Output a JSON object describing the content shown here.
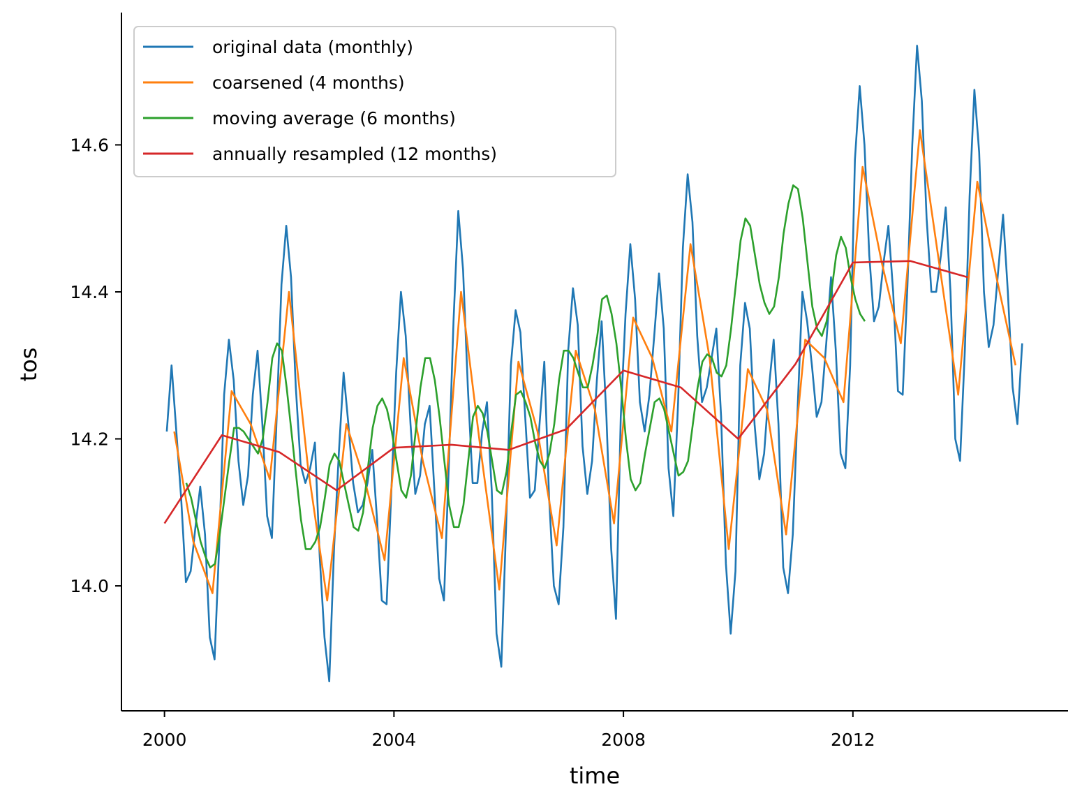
{
  "chart_data": {
    "type": "line",
    "title": "",
    "xlabel": "time",
    "ylabel": "tos",
    "xlim": [
      1999.25,
      2015.75
    ],
    "ylim": [
      13.83,
      14.78
    ],
    "xticks": [
      2000,
      2004,
      2008,
      2012
    ],
    "xtick_labels": [
      "2000",
      "2004",
      "2008",
      "2012"
    ],
    "yticks": [
      14.0,
      14.2,
      14.4,
      14.6
    ],
    "ytick_labels": [
      "14.0",
      "14.2",
      "14.4",
      "14.6"
    ],
    "legend_position": "top-left",
    "series": [
      {
        "name": "original data (monthly)",
        "color": "#1f77b4",
        "x_start": 2000.04,
        "x_step": 0.0833,
        "values": [
          14.21,
          14.3,
          14.21,
          14.12,
          14.005,
          14.02,
          14.08,
          14.135,
          14.07,
          13.93,
          13.9,
          14.06,
          14.26,
          14.335,
          14.28,
          14.17,
          14.11,
          14.15,
          14.26,
          14.32,
          14.22,
          14.095,
          14.065,
          14.23,
          14.41,
          14.49,
          14.42,
          14.27,
          14.165,
          14.14,
          14.16,
          14.195,
          14.04,
          13.93,
          13.87,
          14.05,
          14.18,
          14.29,
          14.22,
          14.14,
          14.1,
          14.11,
          14.14,
          14.185,
          14.09,
          13.98,
          13.975,
          14.13,
          14.29,
          14.4,
          14.34,
          14.22,
          14.125,
          14.15,
          14.22,
          14.245,
          14.13,
          14.01,
          13.98,
          14.16,
          14.36,
          14.51,
          14.43,
          14.27,
          14.14,
          14.14,
          14.21,
          14.25,
          14.13,
          13.935,
          13.89,
          14.08,
          14.3,
          14.375,
          14.345,
          14.23,
          14.12,
          14.13,
          14.22,
          14.305,
          14.12,
          14.0,
          13.975,
          14.08,
          14.32,
          14.405,
          14.355,
          14.19,
          14.125,
          14.17,
          14.28,
          14.36,
          14.23,
          14.05,
          13.955,
          14.23,
          14.37,
          14.465,
          14.39,
          14.25,
          14.21,
          14.26,
          14.34,
          14.425,
          14.35,
          14.16,
          14.095,
          14.25,
          14.46,
          14.56,
          14.495,
          14.34,
          14.25,
          14.27,
          14.31,
          14.35,
          14.23,
          14.03,
          13.935,
          14.02,
          14.3,
          14.385,
          14.35,
          14.22,
          14.145,
          14.18,
          14.27,
          14.335,
          14.22,
          14.025,
          13.99,
          14.07,
          14.24,
          14.4,
          14.36,
          14.3,
          14.23,
          14.25,
          14.33,
          14.42,
          14.32,
          14.18,
          14.16,
          14.3,
          14.58,
          14.68,
          14.6,
          14.45,
          14.36,
          14.38,
          14.44,
          14.49,
          14.4,
          14.265,
          14.26,
          14.41,
          14.6,
          14.735,
          14.66,
          14.5,
          14.4,
          14.4,
          14.45,
          14.515,
          14.4,
          14.2,
          14.17,
          14.32,
          14.53,
          14.675,
          14.59,
          14.4,
          14.325,
          14.355,
          14.43,
          14.505,
          14.4,
          14.27,
          14.22,
          14.33
        ]
      },
      {
        "name": "coarsened (4 months)",
        "color": "#ff7f0e",
        "x_start": 2000.17,
        "x_step": 0.3333,
        "values": [
          14.21,
          14.06,
          13.99,
          14.265,
          14.22,
          14.145,
          14.4,
          14.16,
          13.98,
          14.22,
          14.14,
          14.035,
          14.31,
          14.17,
          14.065,
          14.4,
          14.19,
          13.995,
          14.305,
          14.21,
          14.055,
          14.32,
          14.24,
          14.085,
          14.365,
          14.31,
          14.21,
          14.465,
          14.31,
          14.05,
          14.295,
          14.24,
          14.07,
          14.335,
          14.31,
          14.25,
          14.57,
          14.44,
          14.33,
          14.62,
          14.44,
          14.26,
          14.55,
          14.42,
          14.3
        ]
      },
      {
        "name": "moving average (6 months)",
        "color": "#2ca02c",
        "x_start": 2000.38,
        "x_step": 0.0833,
        "values": [
          14.14,
          14.12,
          14.09,
          14.06,
          14.04,
          14.025,
          14.03,
          14.07,
          14.12,
          14.17,
          14.215,
          14.215,
          14.21,
          14.2,
          14.19,
          14.18,
          14.2,
          14.25,
          14.31,
          14.33,
          14.32,
          14.27,
          14.21,
          14.15,
          14.09,
          14.05,
          14.05,
          14.06,
          14.08,
          14.12,
          14.165,
          14.18,
          14.17,
          14.14,
          14.11,
          14.08,
          14.075,
          14.1,
          14.16,
          14.215,
          14.245,
          14.255,
          14.24,
          14.21,
          14.17,
          14.13,
          14.12,
          14.15,
          14.21,
          14.27,
          14.31,
          14.31,
          14.28,
          14.23,
          14.17,
          14.11,
          14.08,
          14.08,
          14.11,
          14.17,
          14.23,
          14.245,
          14.235,
          14.21,
          14.17,
          14.13,
          14.125,
          14.155,
          14.21,
          14.26,
          14.265,
          14.25,
          14.23,
          14.195,
          14.17,
          14.16,
          14.18,
          14.22,
          14.28,
          14.32,
          14.32,
          14.31,
          14.29,
          14.27,
          14.27,
          14.3,
          14.34,
          14.39,
          14.395,
          14.37,
          14.33,
          14.27,
          14.2,
          14.145,
          14.13,
          14.14,
          14.18,
          14.215,
          14.25,
          14.255,
          14.24,
          14.21,
          14.18,
          14.15,
          14.155,
          14.17,
          14.22,
          14.27,
          14.305,
          14.315,
          14.31,
          14.29,
          14.285,
          14.3,
          14.35,
          14.41,
          14.47,
          14.5,
          14.49,
          14.45,
          14.41,
          14.385,
          14.37,
          14.38,
          14.42,
          14.48,
          14.52,
          14.545,
          14.54,
          14.5,
          14.44,
          14.38,
          14.35,
          14.34,
          14.36,
          14.4,
          14.45,
          14.475,
          14.46,
          14.42,
          14.39,
          14.37,
          14.36
        ]
      },
      {
        "name": "annually resampled (12 months)",
        "color": "#d62728",
        "x": [
          2000.0,
          2001.0,
          2002.0,
          2003.0,
          2004.0,
          2005.0,
          2006.0,
          2007.0,
          2008.0,
          2009.0,
          2010.0,
          2011.0,
          2012.0,
          2013.0,
          2014.0
        ],
        "values": [
          14.085,
          14.205,
          14.182,
          14.13,
          14.188,
          14.192,
          14.185,
          14.213,
          14.293,
          14.27,
          14.2,
          14.302,
          14.44,
          14.442,
          14.42
        ]
      }
    ]
  }
}
